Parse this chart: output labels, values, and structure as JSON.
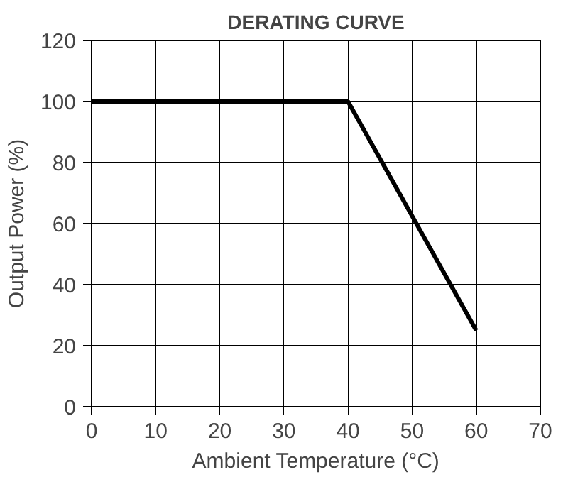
{
  "chart_data": {
    "type": "line",
    "title": "DERATING CURVE",
    "xlabel": "Ambient Temperature (°C)",
    "ylabel": "Output Power (%)",
    "x": [
      0,
      40,
      60
    ],
    "series": [
      {
        "color": "#000000",
        "values": [
          100,
          100,
          25
        ]
      }
    ],
    "xlim": [
      0,
      70
    ],
    "xticks": [
      0,
      10,
      20,
      30,
      40,
      50,
      60,
      70
    ],
    "ylim": [
      0,
      120
    ],
    "yticks": [
      0,
      20,
      40,
      60,
      80,
      100,
      120
    ],
    "grid": true,
    "marker": "none",
    "line_style": "solid"
  }
}
